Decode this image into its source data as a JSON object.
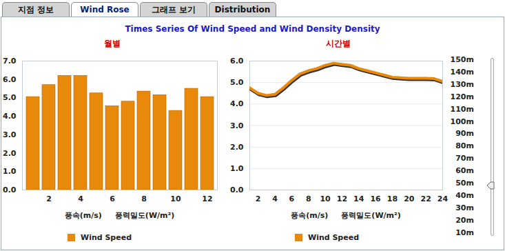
{
  "tabs": [
    "지점 정보",
    "Wind Rose",
    "그래프 보기",
    "Distribution"
  ],
  "active_tab": "Wind Rose",
  "title": "Times Series Of Wind Speed and Wind Density Density",
  "slider": {
    "labels": [
      "150m",
      "140m",
      "130m",
      "120m",
      "110m",
      "100m",
      "90m",
      "80m",
      "70m",
      "60m",
      "50m",
      "40m",
      "30m",
      "20m",
      "10m"
    ],
    "selected": "50m"
  },
  "chart_data": [
    {
      "type": "bar",
      "title": "월별",
      "xlabel": "풍속(m/s)     풍력밀도(W/m²)",
      "categories": [
        null,
        "2",
        null,
        "4",
        null,
        "6",
        null,
        "8",
        null,
        "10",
        null,
        "12"
      ],
      "series": [
        {
          "name": "Wind Speed",
          "color": "#e8890c",
          "values": [
            5.05,
            5.7,
            6.2,
            6.2,
            5.25,
            4.55,
            4.8,
            5.35,
            5.15,
            4.3,
            5.5,
            5.05
          ]
        }
      ],
      "ylim": [
        0,
        7
      ],
      "yticks": [
        0,
        1,
        2,
        3,
        4,
        5,
        6,
        7
      ],
      "grid": false,
      "legend": "bottom"
    },
    {
      "type": "line",
      "title": "시간별",
      "xlabel": "풍속(m/s)     풍력밀도(W/m²)",
      "x": [
        1,
        2,
        3,
        4,
        5,
        6,
        7,
        8,
        9,
        10,
        11,
        12,
        13,
        14,
        15,
        16,
        17,
        18,
        19,
        20,
        21,
        22,
        23,
        24
      ],
      "series": [
        {
          "name": "Wind Speed",
          "color": "#e8890c",
          "values": [
            4.75,
            4.5,
            4.4,
            4.45,
            4.75,
            5.1,
            5.4,
            5.55,
            5.65,
            5.8,
            5.9,
            5.85,
            5.8,
            5.65,
            5.55,
            5.45,
            5.35,
            5.25,
            5.22,
            5.2,
            5.2,
            5.2,
            5.18,
            5.05
          ]
        }
      ],
      "xlim": [
        1,
        24
      ],
      "xticks": [
        2,
        4,
        6,
        8,
        10,
        12,
        14,
        16,
        18,
        20,
        22,
        24
      ],
      "ylim": [
        0,
        6
      ],
      "yticks": [
        0,
        1,
        2,
        3,
        4,
        5,
        6
      ],
      "grid": true,
      "legend": "bottom"
    }
  ]
}
